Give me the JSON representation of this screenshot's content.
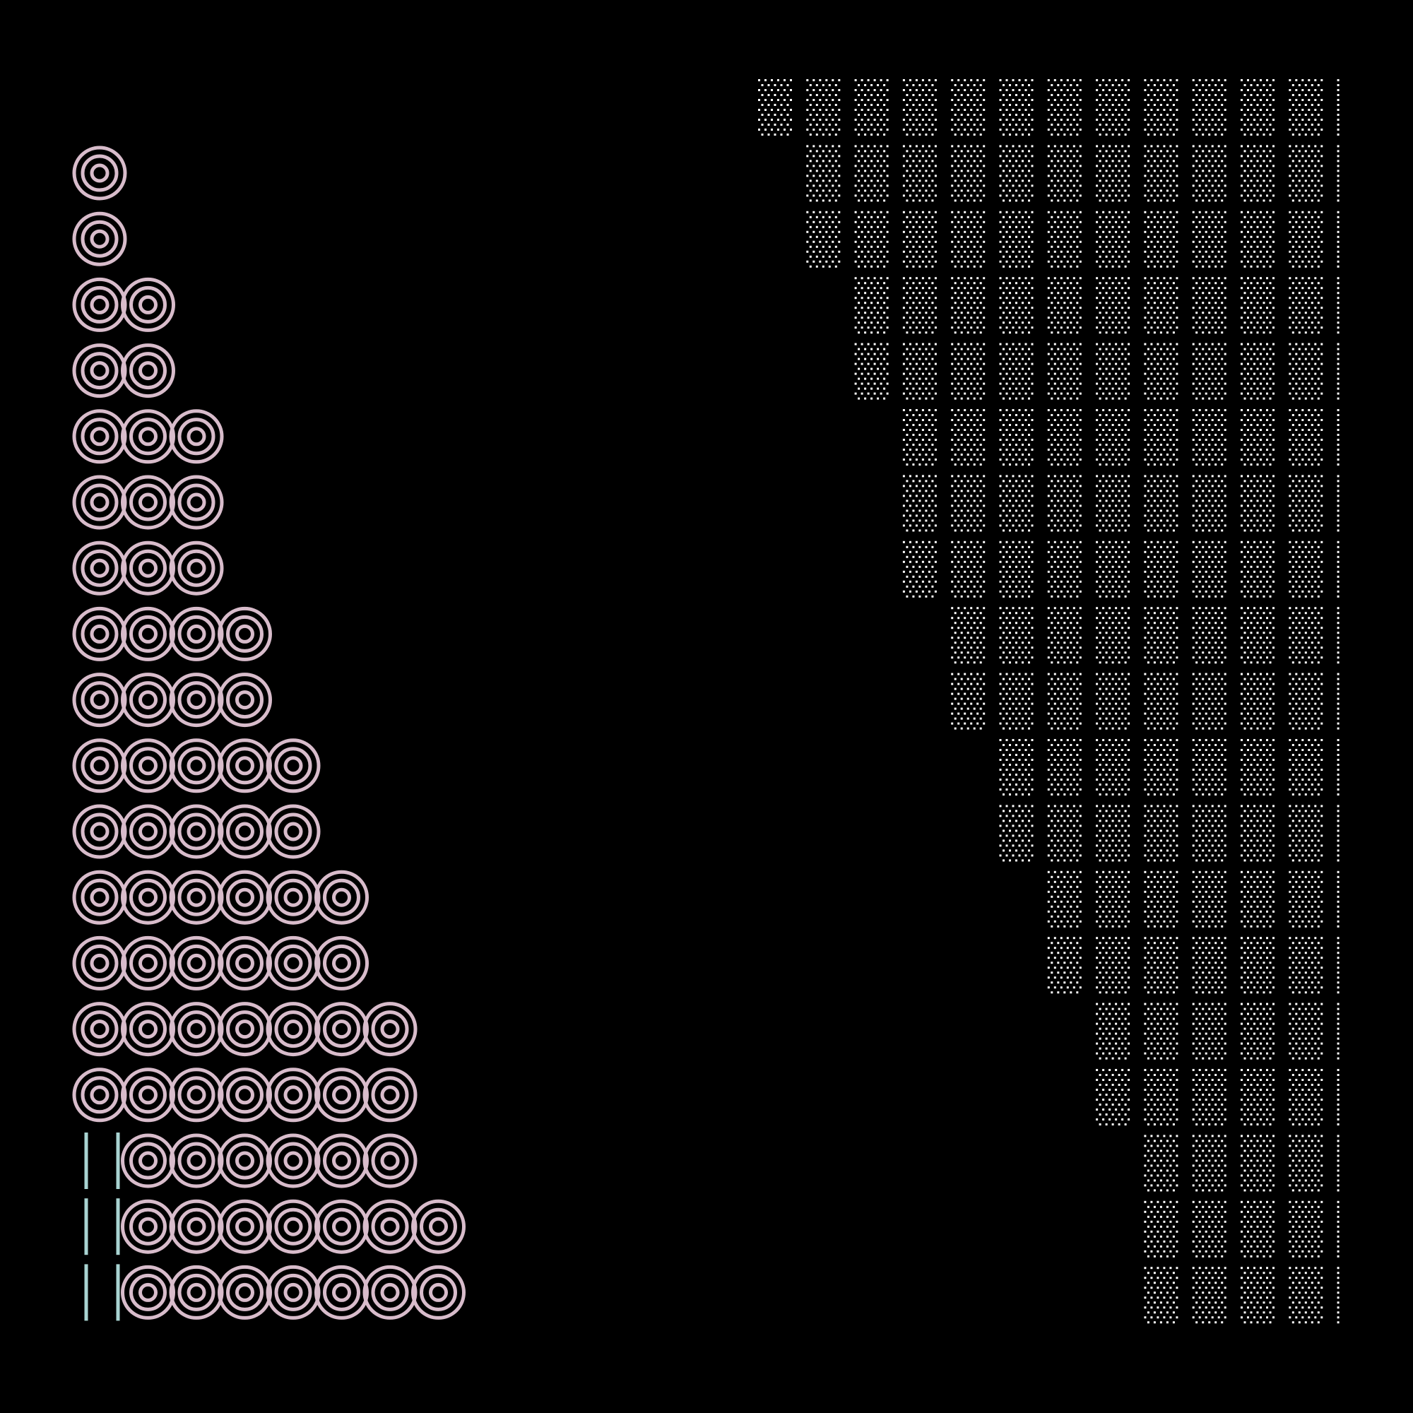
{
  "artwork": {
    "background": "#000000",
    "target_color": "#d8bccb",
    "dot_color": "#ffffff",
    "bar_color": "#a9d4d2",
    "target_rows": {
      "counts": [
        1,
        1,
        2,
        2,
        3,
        3,
        3,
        4,
        4,
        5,
        5,
        6,
        6,
        7,
        7,
        6,
        7,
        7
      ],
      "skipped_first": [
        false,
        false,
        false,
        false,
        false,
        false,
        false,
        false,
        false,
        false,
        false,
        false,
        false,
        false,
        false,
        true,
        true,
        true
      ],
      "ring_radii": [
        36,
        24,
        11
      ]
    },
    "dot_columns": {
      "first_row": [
        0,
        1,
        1,
        2,
        2,
        3,
        3,
        3,
        4,
        4,
        5,
        5,
        6,
        6,
        7,
        7,
        8,
        8,
        8
      ],
      "column_count": 13
    }
  }
}
